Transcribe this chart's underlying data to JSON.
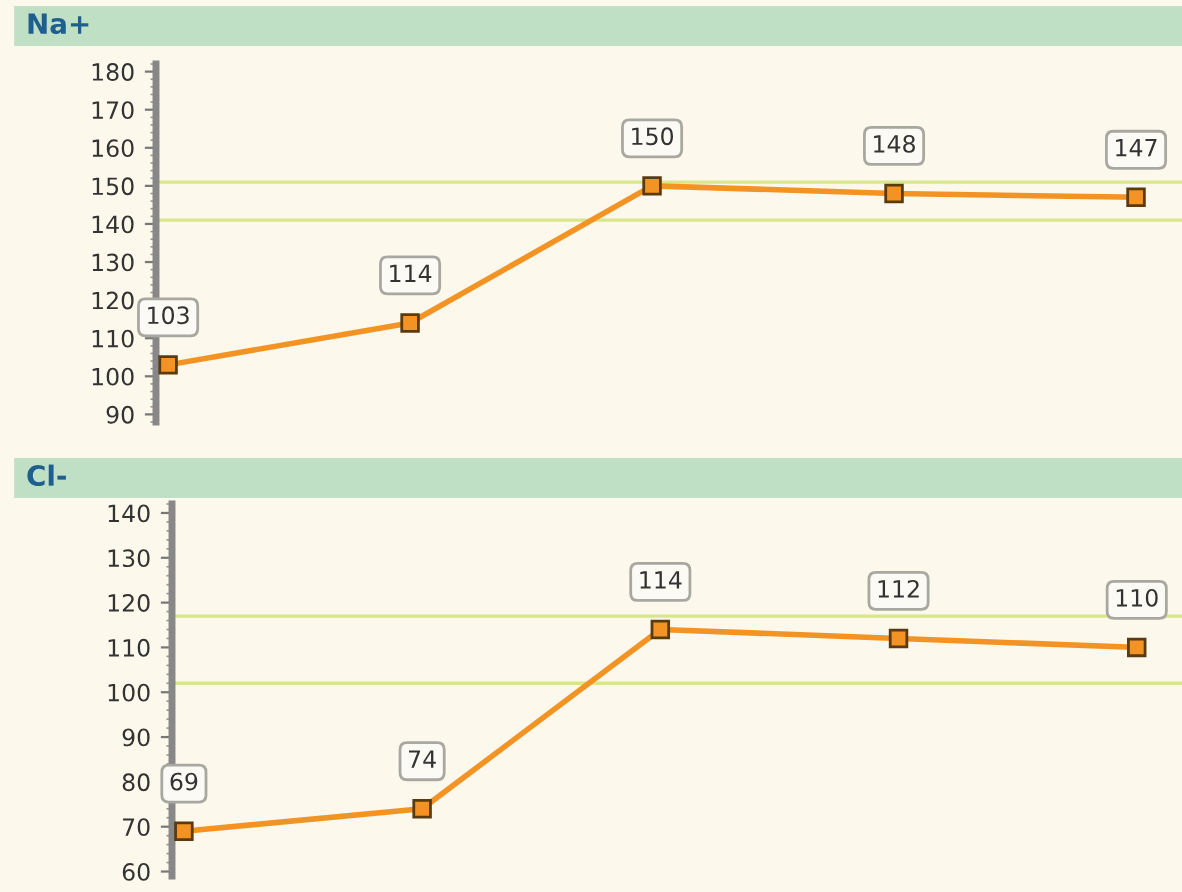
{
  "chart_data": [
    {
      "type": "line",
      "title": "Na+",
      "categories": [
        null,
        null,
        null,
        null,
        null
      ],
      "series": [
        {
          "color": "#f39324",
          "values": [
            103,
            114,
            150,
            148,
            147
          ]
        }
      ],
      "ylim": [
        88,
        182
      ],
      "yticks": [
        90,
        100,
        110,
        120,
        130,
        140,
        150,
        160,
        170,
        180
      ],
      "ref_lines": [
        {
          "axis": "y",
          "value": 151,
          "color": "#d9e68c"
        },
        {
          "axis": "y",
          "value": 141,
          "color": "#d9e68c"
        }
      ],
      "data_labels": true,
      "marker": "square",
      "line_style": "solid",
      "grid": false,
      "legend": false
    },
    {
      "type": "line",
      "title": "Cl-",
      "categories": [
        null,
        null,
        null,
        null,
        null
      ],
      "series": [
        {
          "color": "#f39324",
          "values": [
            69,
            74,
            114,
            112,
            110
          ]
        }
      ],
      "ylim": [
        59,
        142
      ],
      "yticks": [
        60,
        70,
        80,
        90,
        100,
        110,
        120,
        130,
        140
      ],
      "ref_lines": [
        {
          "axis": "y",
          "value": 117,
          "color": "#d9e68c"
        },
        {
          "axis": "y",
          "value": 102,
          "color": "#d9e68c"
        }
      ],
      "data_labels": true,
      "marker": "square",
      "line_style": "solid",
      "grid": false,
      "legend": false
    }
  ]
}
